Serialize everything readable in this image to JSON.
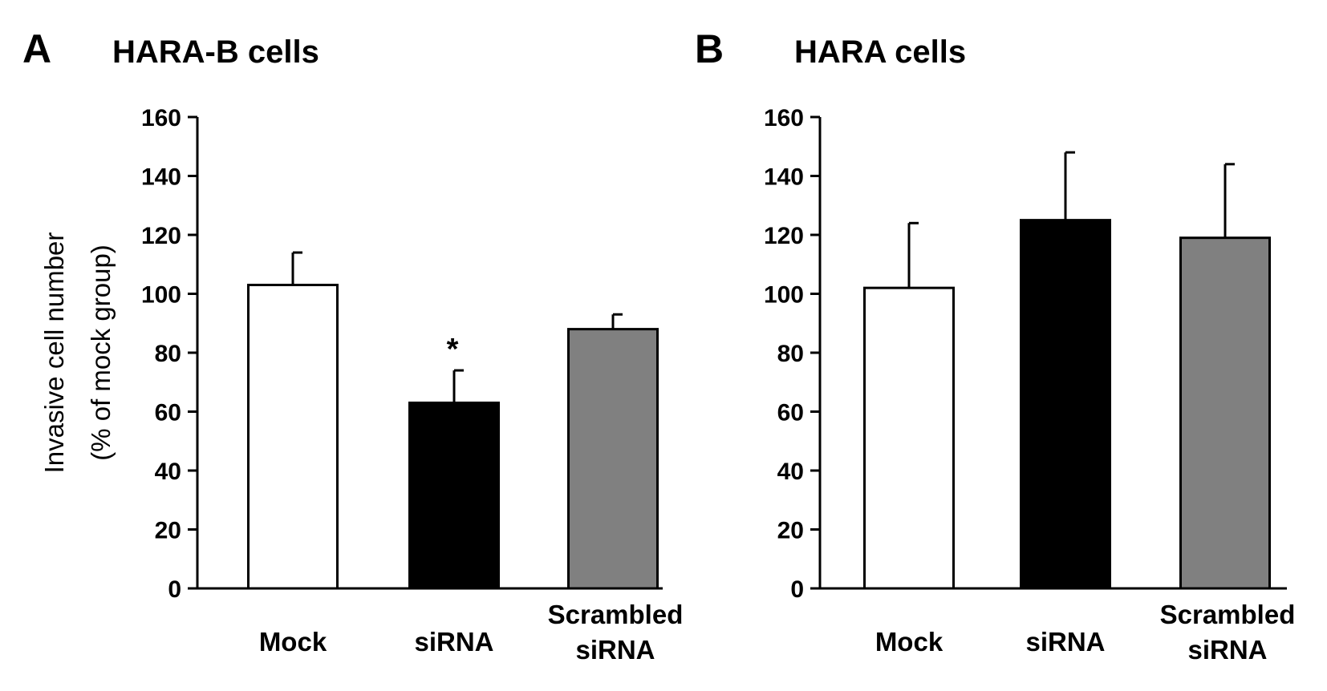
{
  "chart_data": [
    {
      "type": "bar",
      "panel_label": "A",
      "title": "HARA-B cells",
      "ylabel_lines": [
        "Invasive cell number",
        "(% of mock group)"
      ],
      "categories": [
        "Mock",
        "siRNA",
        "Scrambled siRNA"
      ],
      "category_label_lines": [
        [
          "Mock"
        ],
        [
          "siRNA"
        ],
        [
          "Scrambled",
          "siRNA"
        ]
      ],
      "values": [
        103,
        63,
        88
      ],
      "errors": [
        11,
        11,
        5
      ],
      "bar_colors": [
        "#ffffff",
        "#000000",
        "#808080"
      ],
      "annotations": [
        "",
        "*",
        ""
      ],
      "ylim": [
        0,
        160
      ],
      "yticks": [
        0,
        20,
        40,
        60,
        80,
        100,
        120,
        140,
        160
      ],
      "grid": false
    },
    {
      "type": "bar",
      "panel_label": "B",
      "title": "HARA cells",
      "ylabel_lines": [],
      "categories": [
        "Mock",
        "siRNA",
        "Scrambled siRNA"
      ],
      "category_label_lines": [
        [
          "Mock"
        ],
        [
          "siRNA"
        ],
        [
          "Scrambled",
          "siRNA"
        ]
      ],
      "values": [
        102,
        125,
        119
      ],
      "errors": [
        22,
        23,
        25
      ],
      "bar_colors": [
        "#ffffff",
        "#000000",
        "#808080"
      ],
      "annotations": [
        "",
        "",
        ""
      ],
      "ylim": [
        0,
        160
      ],
      "yticks": [
        0,
        20,
        40,
        60,
        80,
        100,
        120,
        140,
        160
      ],
      "grid": false
    }
  ]
}
